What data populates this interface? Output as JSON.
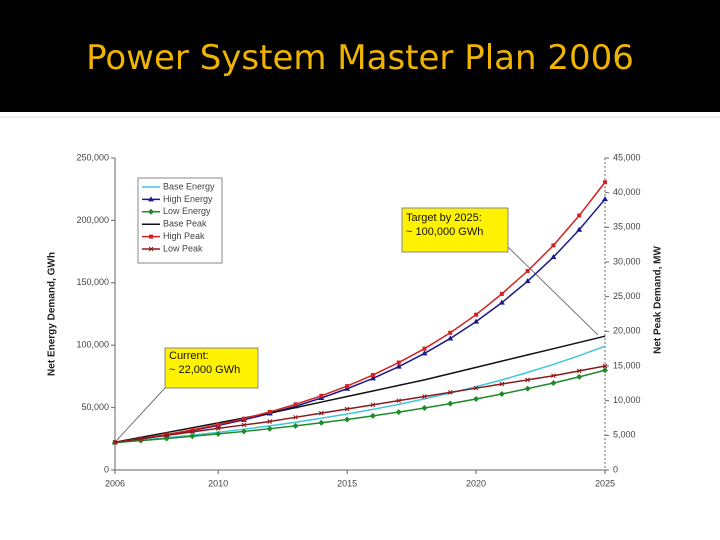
{
  "header": {
    "title": "Power System Master Plan 2006"
  },
  "chart_data": {
    "type": "line",
    "x": [
      2006,
      2007,
      2008,
      2009,
      2010,
      2011,
      2012,
      2013,
      2014,
      2015,
      2016,
      2017,
      2018,
      2019,
      2020,
      2021,
      2022,
      2023,
      2024,
      2025
    ],
    "xlim": [
      2006,
      2025
    ],
    "xticks": [
      2006,
      2010,
      2015,
      2020,
      2025
    ],
    "ylim": [
      0,
      250000
    ],
    "yticks": [
      0,
      {
        "value": 50000,
        "label": "50,000"
      },
      {
        "value": 100000,
        "label": "100,000"
      },
      {
        "value": 150000,
        "label": "150,000"
      },
      {
        "value": 200000,
        "label": "200,000"
      },
      {
        "value": 250000,
        "label": "250,000"
      }
    ],
    "y2lim": [
      0,
      45000
    ],
    "y2ticks": [
      0,
      {
        "value": 5000,
        "label": "5,000"
      },
      {
        "value": 10000,
        "label": "10,000"
      },
      {
        "value": 15000,
        "label": "15,000"
      },
      {
        "value": 20000,
        "label": "20,000"
      },
      {
        "value": 25000,
        "label": "25,000"
      },
      {
        "value": 30000,
        "label": "30,000"
      },
      {
        "value": 35000,
        "label": "35,000"
      },
      {
        "value": 40000,
        "label": "40,000"
      },
      {
        "value": 45000,
        "label": "45,000"
      }
    ],
    "ylabel": "Net Energy Demand, GWh",
    "y2label": "Net Peak Demand, MW",
    "legend": "top-left",
    "annotations": [
      "Target by 2025:\n~ 100,000 GWh",
      "Current:\n~ 22,000 GWh"
    ],
    "series": [
      {
        "name": "Base Energy",
        "color": "#3fc6d8",
        "marker": "none",
        "values": [
          22000,
          23800,
          25800,
          27900,
          30200,
          32700,
          35400,
          38300,
          41500,
          44900,
          48600,
          52600,
          57000,
          61700,
          66700,
          72200,
          78200,
          84600,
          91600,
          99200
        ]
      },
      {
        "name": "High Energy",
        "color": "#1a1a8c",
        "marker": "triangle",
        "values": [
          22000,
          24800,
          28000,
          31600,
          35600,
          40200,
          45300,
          51100,
          57700,
          65100,
          73400,
          82800,
          93400,
          105400,
          118900,
          134100,
          151300,
          170600,
          192500,
          217000
        ]
      },
      {
        "name": "Low Energy",
        "color": "#1f8a2a",
        "marker": "diamond",
        "values": [
          22000,
          23500,
          25200,
          27000,
          28900,
          30900,
          33100,
          35400,
          37900,
          40500,
          43400,
          46400,
          49700,
          53200,
          56900,
          60900,
          65200,
          69700,
          74600,
          79900
        ]
      },
      {
        "name": "Base Peak",
        "color": "#111111",
        "marker": "none",
        "axis": "y2",
        "values": [
          4000,
          4700,
          5400,
          6100,
          6800,
          7500,
          8200,
          9000,
          9800,
          10600,
          11400,
          12200,
          13000,
          13900,
          14800,
          15700,
          16600,
          17500,
          18400,
          19300
        ]
      },
      {
        "name": "High Peak",
        "color": "#d42020",
        "marker": "square",
        "axis": "y2",
        "values": [
          4000,
          4520,
          5120,
          5790,
          6550,
          7400,
          8370,
          9470,
          10700,
          12100,
          13700,
          15500,
          17500,
          19800,
          22400,
          25400,
          28700,
          32400,
          36700,
          41500
        ]
      },
      {
        "name": "Low Peak",
        "color": "#8a1a1a",
        "marker": "x",
        "axis": "y2",
        "values": [
          4000,
          4500,
          5000,
          5500,
          6000,
          6500,
          7000,
          7600,
          8200,
          8800,
          9400,
          10000,
          10600,
          11200,
          11800,
          12400,
          13000,
          13600,
          14300,
          15000
        ]
      }
    ]
  }
}
